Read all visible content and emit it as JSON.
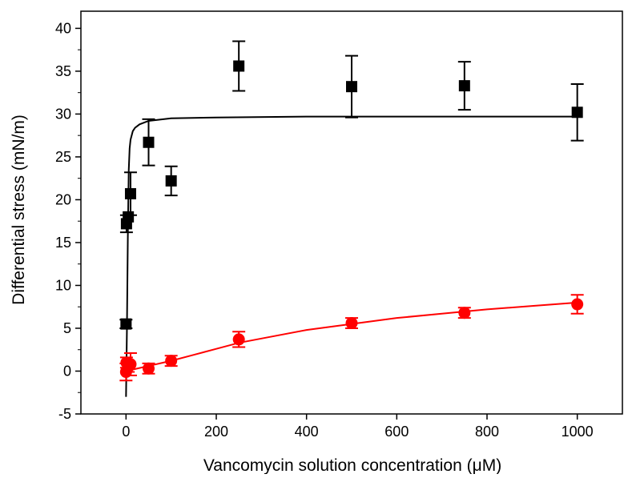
{
  "chart_data": {
    "type": "scatter",
    "title": "",
    "xlabel": "Vancomycin solution concentration (μM)",
    "ylabel": "Differential stress (mN/m)",
    "xlim": [
      -100,
      1100
    ],
    "ylim": [
      -5,
      42
    ],
    "xticks": [
      0,
      200,
      400,
      600,
      800,
      1000
    ],
    "yticks": [
      -5,
      0,
      5,
      10,
      15,
      20,
      25,
      30,
      35,
      40
    ],
    "grid": false,
    "legend": "none",
    "series": [
      {
        "marker": "square",
        "color": "#000000",
        "x": [
          0,
          1,
          5,
          10,
          50,
          100,
          250,
          500,
          750,
          1000
        ],
        "y": [
          5.5,
          17.2,
          18.0,
          20.7,
          26.7,
          22.2,
          35.6,
          33.2,
          33.3,
          30.2
        ],
        "yerr": [
          0.5,
          1.0,
          0.0,
          2.5,
          2.7,
          1.7,
          2.9,
          3.6,
          2.8,
          3.3
        ],
        "fit": {
          "color": "#000000",
          "x": [
            0,
            2,
            4,
            6,
            8,
            10,
            15,
            20,
            30,
            50,
            100,
            200,
            400,
            600,
            800,
            1000
          ],
          "y": [
            -3.0,
            4.9,
            15.7,
            23.4,
            26.0,
            27.0,
            28.0,
            28.4,
            28.8,
            29.2,
            29.5,
            29.6,
            29.7,
            29.7,
            29.7,
            29.7
          ]
        }
      },
      {
        "marker": "circle",
        "color": "#ff0000",
        "x": [
          0,
          1,
          5,
          10,
          50,
          100,
          250,
          500,
          750,
          1000
        ],
        "y": [
          -0.1,
          1.0,
          0.5,
          0.8,
          0.3,
          1.2,
          3.7,
          5.6,
          6.8,
          7.8
        ],
        "yerr": [
          1.0,
          0.6,
          0.6,
          1.3,
          0.6,
          0.6,
          0.9,
          0.6,
          0.6,
          1.1
        ],
        "fit": {
          "color": "#ff0000",
          "x": [
            0,
            25,
            50,
            100,
            150,
            200,
            250,
            300,
            400,
            500,
            600,
            700,
            800,
            900,
            1000
          ],
          "y": [
            0.0,
            0.3,
            0.6,
            1.2,
            1.9,
            2.6,
            3.3,
            3.8,
            4.8,
            5.5,
            6.2,
            6.7,
            7.2,
            7.6,
            8.0
          ]
        }
      }
    ]
  },
  "colors": {
    "axis": "#000000",
    "series_black": "#000000",
    "series_red": "#ff0000"
  }
}
